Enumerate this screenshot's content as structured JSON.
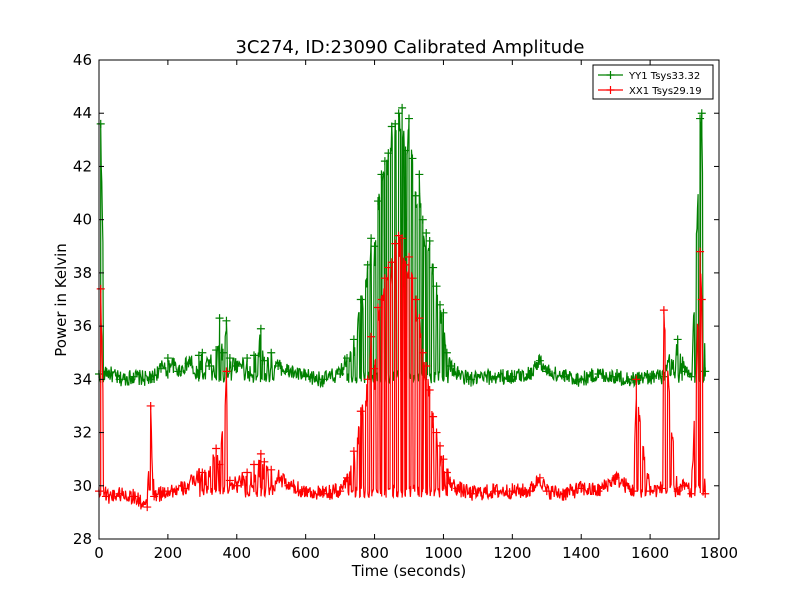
{
  "chart_data": {
    "type": "line",
    "title": "3C274, ID:23090 Calibrated Amplitude",
    "xlabel": "Time (seconds)",
    "ylabel": "Power in Kelvin",
    "xlim": [
      0,
      1800
    ],
    "ylim": [
      28,
      46
    ],
    "xticks": [
      0,
      200,
      400,
      600,
      800,
      1000,
      1200,
      1400,
      1600,
      1800
    ],
    "yticks": [
      28,
      30,
      32,
      34,
      36,
      38,
      40,
      42,
      44,
      46
    ],
    "grid": false,
    "legend_position": "top-right",
    "marker": "+",
    "series": [
      {
        "name": "YY1 Tsys33.32",
        "color": "#008000",
        "baseline": 34.1,
        "x": [
          0,
          5,
          20,
          60,
          100,
          150,
          180,
          200,
          230,
          260,
          290,
          300,
          320,
          340,
          350,
          360,
          370,
          380,
          400,
          430,
          450,
          470,
          480,
          500,
          520,
          550,
          600,
          650,
          700,
          720,
          740,
          760,
          780,
          790,
          800,
          810,
          820,
          830,
          840,
          850,
          860,
          870,
          880,
          890,
          900,
          910,
          920,
          930,
          940,
          950,
          960,
          970,
          980,
          990,
          1000,
          1010,
          1020,
          1040,
          1080,
          1150,
          1200,
          1250,
          1280,
          1300,
          1350,
          1400,
          1450,
          1500,
          1550,
          1600,
          1640,
          1680,
          1700,
          1720,
          1745,
          1750,
          1760
        ],
        "y": [
          34.2,
          43.6,
          34.3,
          34.0,
          34.1,
          34.0,
          34.4,
          34.8,
          34.3,
          34.6,
          34.9,
          35.0,
          34.5,
          35.1,
          36.3,
          35.0,
          36.2,
          34.8,
          34.5,
          34.8,
          34.9,
          35.9,
          34.7,
          35.0,
          34.5,
          34.3,
          34.1,
          34.0,
          34.2,
          34.8,
          35.5,
          37.0,
          38.3,
          39.3,
          39.0,
          40.7,
          41.7,
          42.2,
          42.5,
          43.5,
          43.6,
          44.0,
          44.2,
          42.6,
          43.8,
          42.3,
          40.9,
          41.7,
          40.0,
          39.5,
          39.2,
          38.2,
          37.5,
          36.8,
          36.5,
          35.0,
          34.5,
          34.2,
          34.0,
          34.1,
          34.1,
          34.2,
          34.7,
          34.3,
          34.1,
          34.0,
          34.2,
          34.1,
          34.0,
          34.1,
          34.1,
          35.5,
          34.3,
          34.1,
          43.8,
          44.0,
          34.3
        ]
      },
      {
        "name": "XX1 Tsys29.19",
        "color": "#ff0000",
        "baseline": 29.8,
        "x": [
          0,
          5,
          20,
          60,
          100,
          140,
          150,
          160,
          200,
          250,
          300,
          340,
          350,
          370,
          380,
          400,
          430,
          450,
          470,
          480,
          500,
          550,
          600,
          650,
          700,
          720,
          740,
          760,
          780,
          790,
          800,
          810,
          820,
          830,
          840,
          850,
          860,
          870,
          880,
          890,
          900,
          910,
          920,
          930,
          940,
          950,
          960,
          970,
          980,
          990,
          1000,
          1010,
          1020,
          1040,
          1080,
          1150,
          1200,
          1250,
          1280,
          1300,
          1350,
          1400,
          1450,
          1500,
          1550,
          1560,
          1600,
          1635,
          1640,
          1680,
          1700,
          1720,
          1745,
          1750,
          1760
        ],
        "y": [
          29.8,
          37.4,
          29.6,
          29.7,
          29.6,
          29.2,
          33.0,
          29.6,
          29.8,
          29.9,
          30.5,
          31.4,
          30.8,
          34.3,
          30.2,
          30.0,
          30.5,
          30.8,
          31.2,
          30.9,
          30.6,
          30.0,
          29.8,
          29.7,
          29.8,
          30.3,
          31.3,
          32.8,
          34.0,
          35.6,
          34.4,
          36.7,
          37.0,
          37.8,
          38.2,
          38.4,
          39.1,
          39.4,
          39.3,
          38.3,
          38.6,
          37.8,
          37.0,
          36.3,
          35.0,
          34.5,
          33.6,
          32.6,
          32.0,
          31.5,
          31.0,
          30.5,
          30.1,
          29.9,
          29.7,
          29.8,
          29.8,
          29.8,
          30.3,
          29.8,
          29.7,
          29.9,
          29.8,
          30.3,
          29.8,
          34.0,
          29.8,
          29.9,
          36.6,
          29.8,
          30.0,
          29.7,
          38.8,
          37.0,
          29.7
        ]
      }
    ]
  }
}
